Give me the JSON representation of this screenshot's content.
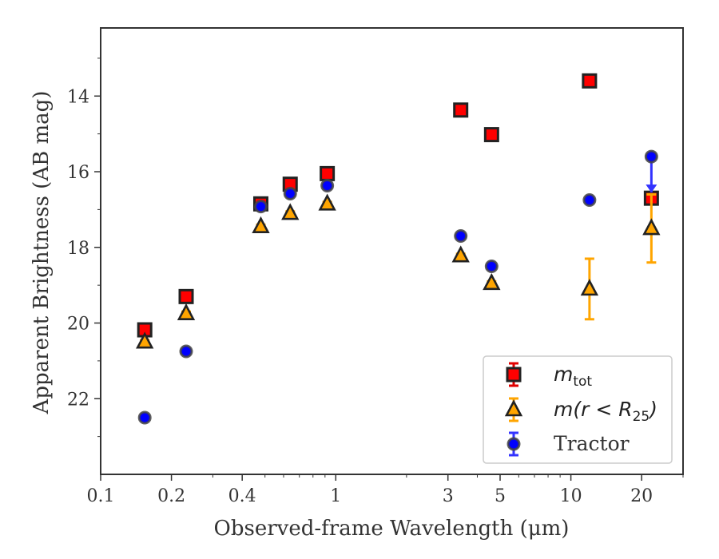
{
  "chart_data": {
    "type": "scatter",
    "xlabel": "Observed-frame Wavelength (μm)",
    "ylabel": "Apparent Brightness (AB mag)",
    "xscale": "log",
    "xlim": [
      0.1,
      30
    ],
    "ylim": [
      24,
      12.2
    ],
    "y_inverted": true,
    "xticks": [
      {
        "value": 0.1,
        "label": "0.1"
      },
      {
        "value": 0.2,
        "label": "0.2"
      },
      {
        "value": 0.4,
        "label": "0.4"
      },
      {
        "value": 1,
        "label": "1"
      },
      {
        "value": 3,
        "label": "3"
      },
      {
        "value": 5,
        "label": "5"
      },
      {
        "value": 10,
        "label": "10"
      },
      {
        "value": 20,
        "label": "20"
      }
    ],
    "yticks": [
      {
        "value": 14,
        "label": "14"
      },
      {
        "value": 16,
        "label": "16"
      },
      {
        "value": 18,
        "label": "18"
      },
      {
        "value": 20,
        "label": "20"
      },
      {
        "value": 22,
        "label": "22"
      }
    ],
    "grid": false,
    "legend_position": "lower right",
    "series": [
      {
        "name": "m_tot",
        "legend_main": "m",
        "legend_sub": "tot",
        "marker": "square",
        "color": "#ff0000",
        "edge": "#222222",
        "ecolor": "#e00000",
        "points": [
          {
            "x": 0.154,
            "y": 20.18,
            "err": 0.07
          },
          {
            "x": 0.231,
            "y": 19.3,
            "err": 0.05
          },
          {
            "x": 0.48,
            "y": 16.85,
            "err": 0.06
          },
          {
            "x": 0.64,
            "y": 16.33,
            "err": 0.05
          },
          {
            "x": 0.92,
            "y": 16.05,
            "err": 0.05
          },
          {
            "x": 3.4,
            "y": 14.37,
            "err": 0.04
          },
          {
            "x": 4.6,
            "y": 15.02,
            "err": 0.04
          },
          {
            "x": 12.0,
            "y": 13.6,
            "err": 0.04
          },
          {
            "x": 22.0,
            "y": 16.7,
            "err": 0.08
          }
        ]
      },
      {
        "name": "m(r < R_25)",
        "legend_main": "m(r < R",
        "legend_sub": "25",
        "legend_tail": ")",
        "marker": "triangle",
        "color": "#ffa500",
        "edge": "#222222",
        "ecolor": "#ffa500",
        "points": [
          {
            "x": 0.154,
            "y": 20.5,
            "err": 0.05
          },
          {
            "x": 0.231,
            "y": 19.75,
            "err": 0.05
          },
          {
            "x": 0.48,
            "y": 17.45,
            "err": 0.05
          },
          {
            "x": 0.64,
            "y": 17.1,
            "err": 0.05
          },
          {
            "x": 0.92,
            "y": 16.85,
            "err": 0.05
          },
          {
            "x": 3.4,
            "y": 18.22,
            "err": 0.05
          },
          {
            "x": 4.6,
            "y": 18.95,
            "err": 0.05
          },
          {
            "x": 12.0,
            "y": 19.1,
            "err": 0.8
          },
          {
            "x": 22.0,
            "y": 17.5,
            "err": 0.9
          }
        ]
      },
      {
        "name": "Tractor",
        "legend_main": "Tractor",
        "marker": "circle",
        "color": "#0000ff",
        "edge": "#444444",
        "ecolor": "#3333ff",
        "points": [
          {
            "x": 0.154,
            "y": 22.5,
            "err": 0.05
          },
          {
            "x": 0.231,
            "y": 20.75,
            "err": 0.05
          },
          {
            "x": 0.48,
            "y": 16.92,
            "err": 0.05
          },
          {
            "x": 0.64,
            "y": 16.58,
            "err": 0.05
          },
          {
            "x": 0.92,
            "y": 16.37,
            "err": 0.05
          },
          {
            "x": 3.4,
            "y": 17.7,
            "err": 0.05
          },
          {
            "x": 4.6,
            "y": 18.5,
            "err": 0.05
          },
          {
            "x": 12.0,
            "y": 16.75,
            "err": 0.05
          },
          {
            "x": 22.0,
            "y": 15.6,
            "err": 0.05,
            "upper_limit_arrow_to": 16.55
          }
        ]
      }
    ]
  }
}
